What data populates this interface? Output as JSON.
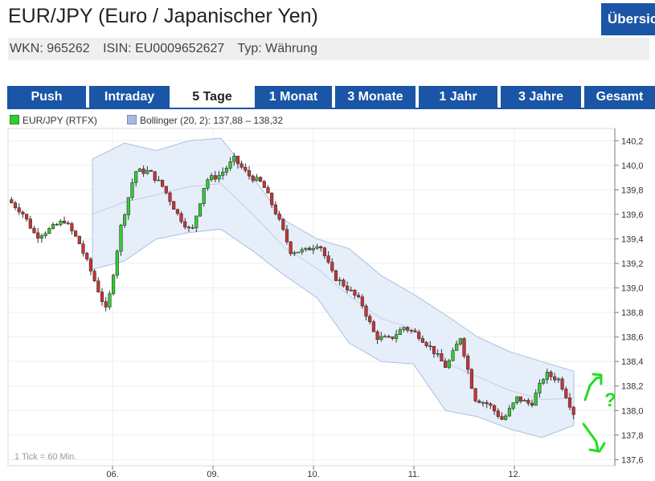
{
  "header": {
    "title": "EUR/JPY (Euro / Japanischer Yen)",
    "overview_button": "Übersicht",
    "wkn": "WKN: 965262",
    "isin": "ISIN: EU0009652627",
    "typ": "Typ: Währung"
  },
  "tabs": [
    {
      "label": "Push",
      "active": false
    },
    {
      "label": "Intraday",
      "active": false
    },
    {
      "label": "5 Tage",
      "active": true
    },
    {
      "label": "1 Monat",
      "active": false
    },
    {
      "label": "3 Monate",
      "active": false
    },
    {
      "label": "1 Jahr",
      "active": false
    },
    {
      "label": "3 Jahre",
      "active": false
    },
    {
      "label": "Gesamt",
      "active": false
    }
  ],
  "legend": {
    "series_label": "EUR/JPY (RTFX)",
    "bollinger_label": "Bollinger (20, 2): 137,88 – 138,32"
  },
  "colors": {
    "tab_bg": "#1a55a6",
    "up_candle": "#33cc33",
    "down_candle": "#cc3333",
    "bollinger_fill": "#e6eefa",
    "annotation": "#22dd22"
  },
  "chart_data": {
    "type": "candlestick",
    "x_tick_labels": [
      "06.",
      "09.",
      "10.",
      "11.",
      "12."
    ],
    "y_ticks": [
      "137,6",
      "137,8",
      "138,0",
      "138,2",
      "138,4",
      "138,6",
      "138,8",
      "139,0",
      "139,2",
      "139,4",
      "139,6",
      "139,8",
      "140,0",
      "140,2"
    ],
    "ylim": [
      137.55,
      140.3
    ],
    "tick_note": "1 Tick = 60 Min.",
    "annotations": [
      "?"
    ],
    "close_path": [
      139.72,
      139.62,
      139.42,
      139.48,
      139.55,
      139.38,
      139.1,
      138.8,
      139.5,
      139.95,
      139.95,
      139.82,
      139.6,
      139.45,
      139.88,
      139.92,
      140.05,
      139.92,
      139.85,
      139.6,
      139.3,
      139.3,
      139.37,
      139.1,
      139.0,
      138.88,
      138.6,
      138.58,
      138.68,
      138.62,
      138.5,
      138.35,
      138.6,
      138.1,
      138.05,
      137.92,
      138.1,
      138.05,
      138.3,
      138.25,
      137.98
    ],
    "bollinger_upper": [
      140.05,
      140.18,
      140.12,
      140.2,
      140.22,
      139.9,
      139.55,
      139.4,
      139.32,
      139.1,
      138.95,
      138.78,
      138.6,
      138.48,
      138.4,
      138.32
    ],
    "bollinger_lower": [
      139.15,
      139.22,
      139.4,
      139.45,
      139.48,
      139.3,
      139.1,
      138.92,
      138.55,
      138.4,
      138.38,
      138.0,
      137.95,
      137.85,
      137.78,
      137.88
    ]
  }
}
